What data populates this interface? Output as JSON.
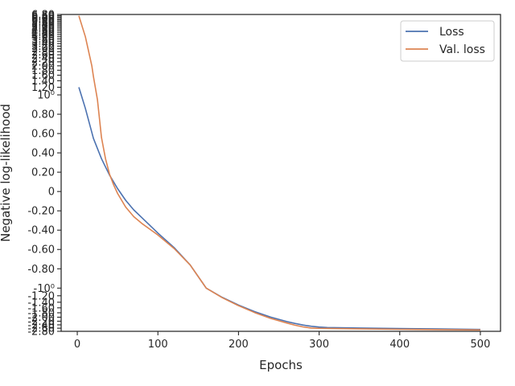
{
  "chart_data": {
    "type": "line",
    "xlabel": "Epochs",
    "ylabel": "Negative log-likelihood",
    "xlim": [
      -20,
      525
    ],
    "ylim": [
      -2.8,
      6.8
    ],
    "scale": "symlog",
    "linthresh": 1,
    "grid": false,
    "legend_position": "top-right",
    "x_ticks": [
      0,
      100,
      200,
      300,
      400,
      500
    ],
    "x_tick_labels": [
      "0",
      "100",
      "200",
      "300",
      "400",
      "500"
    ],
    "y_ticks": [
      -2.8,
      -2.6,
      -2.4,
      -2.2,
      -2.0,
      -1.8,
      -1.6,
      -1.4,
      -1.2,
      -1.0,
      -0.8,
      -0.6,
      -0.4,
      -0.2,
      0,
      0.2,
      0.4,
      0.6,
      0.8,
      1.0,
      1.2,
      1.4,
      1.6,
      1.8,
      2.0,
      2.2,
      2.4,
      2.6,
      2.8,
      3.0,
      3.2,
      3.4,
      3.6,
      3.8,
      4.0,
      4.2,
      4.4,
      4.6,
      4.8,
      5.0,
      5.2,
      5.4,
      5.6,
      5.8,
      6.0,
      6.2,
      6.4,
      6.6,
      6.8
    ],
    "y_tick_labels": [
      "-2.80",
      "-2.60",
      "-2.40",
      "-2.20",
      "-2.00",
      "-1.80",
      "-1.60",
      "-1.40",
      "-1.20",
      "-10⁰",
      "-0.80",
      "-0.60",
      "-0.40",
      "-0.20",
      "0",
      "0.20",
      "0.40",
      "0.60",
      "0.80",
      "10⁰",
      "1.20",
      "1.40",
      "1.60",
      "1.80",
      "2.00",
      "2.20",
      "2.40",
      "2.60",
      "2.80",
      "3.00",
      "3.20",
      "3.40",
      "3.60",
      "3.80",
      "4.00",
      "4.20",
      "4.40",
      "4.60",
      "4.80",
      "5.00",
      "5.20",
      "5.40",
      "5.60",
      "5.80",
      "6.00",
      "6.20",
      "6.40",
      "6.60",
      "6.80"
    ],
    "series": [
      {
        "name": "Loss",
        "color": "#4c72b0",
        "x": [
          2,
          10,
          20,
          30,
          40,
          50,
          60,
          70,
          80,
          90,
          100,
          120,
          140,
          160,
          180,
          200,
          220,
          240,
          260,
          270,
          280,
          290,
          300,
          310,
          350,
          400,
          450,
          500
        ],
        "y": [
          1.2,
          0.86,
          0.55,
          0.34,
          0.17,
          0.03,
          -0.09,
          -0.19,
          -0.27,
          -0.35,
          -0.43,
          -0.58,
          -0.76,
          -1.0,
          -1.25,
          -1.5,
          -1.75,
          -2.0,
          -2.22,
          -2.32,
          -2.41,
          -2.48,
          -2.53,
          -2.56,
          -2.59,
          -2.62,
          -2.65,
          -2.68
        ]
      },
      {
        "name": "Val. loss",
        "color": "#dd8452",
        "x": [
          2,
          10,
          18,
          20,
          25,
          30,
          35,
          40,
          45,
          50,
          60,
          70,
          80,
          90,
          100,
          120,
          140,
          160,
          180,
          200,
          220,
          240,
          260,
          270,
          280,
          290,
          300,
          350,
          400,
          450,
          500
        ],
        "y": [
          6.6,
          4.0,
          2.0,
          1.55,
          0.95,
          0.56,
          0.34,
          0.18,
          0.07,
          -0.02,
          -0.16,
          -0.26,
          -0.33,
          -0.39,
          -0.45,
          -0.59,
          -0.76,
          -1.0,
          -1.26,
          -1.52,
          -1.79,
          -2.06,
          -2.3,
          -2.42,
          -2.52,
          -2.59,
          -2.61,
          -2.64,
          -2.67,
          -2.69,
          -2.71
        ]
      }
    ]
  }
}
